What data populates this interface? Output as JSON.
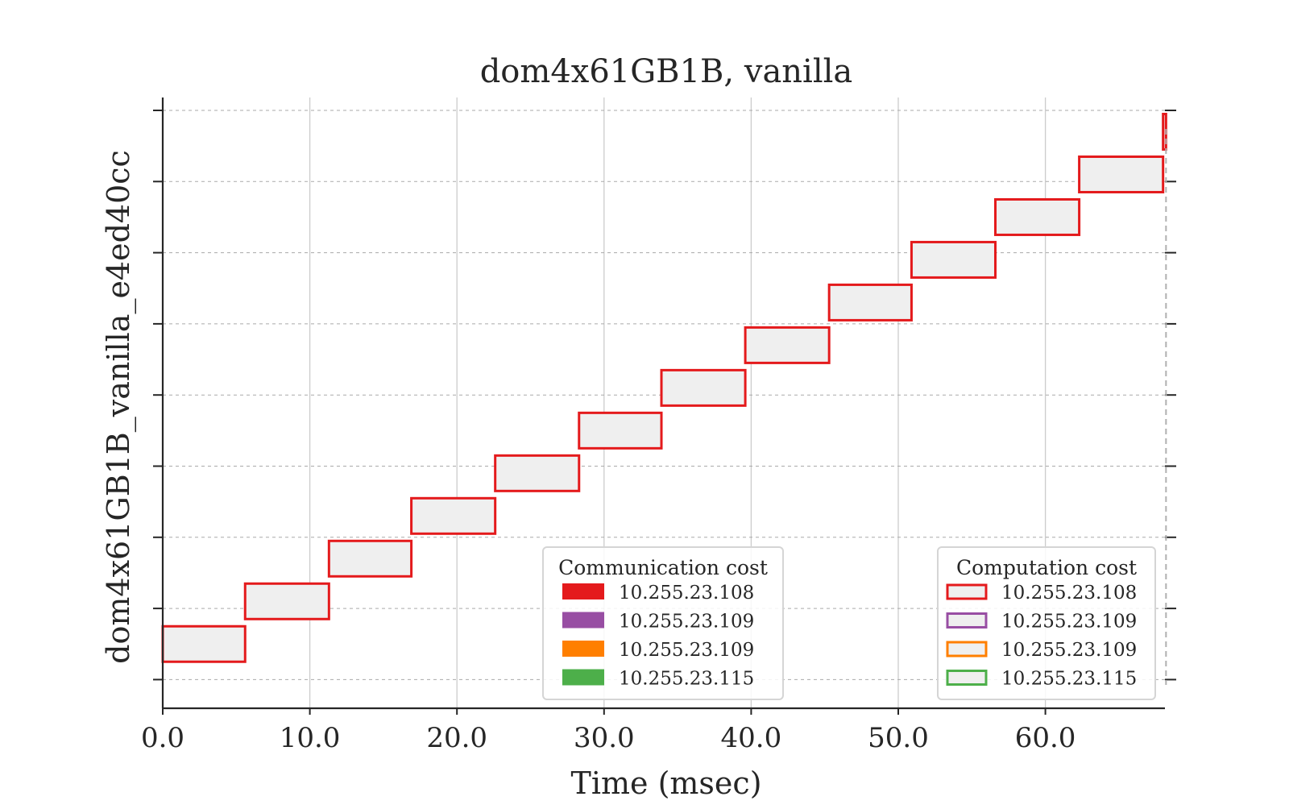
{
  "chart_data": {
    "type": "gantt",
    "title": "dom4x61GB1B, vanilla",
    "xlabel": "Time (msec)",
    "ylabel": "dom4x61GB1B_vanilla_e4ed40cc",
    "xlim": [
      0,
      68.2
    ],
    "x_ticks": [
      "0.0",
      "10.0",
      "20.0",
      "30.0",
      "40.0",
      "50.0",
      "60.0"
    ],
    "y_tick_count": 9,
    "grid": true,
    "bars": [
      {
        "start": 0.0,
        "end": 5.6,
        "level": 0.5,
        "host": "10.255.23.108"
      },
      {
        "start": 5.6,
        "end": 11.3,
        "level": 1.1,
        "host": "10.255.23.108"
      },
      {
        "start": 11.3,
        "end": 16.9,
        "level": 1.7,
        "host": "10.255.23.108"
      },
      {
        "start": 16.9,
        "end": 22.6,
        "level": 2.3,
        "host": "10.255.23.108"
      },
      {
        "start": 22.6,
        "end": 28.3,
        "level": 2.9,
        "host": "10.255.23.108"
      },
      {
        "start": 28.3,
        "end": 33.9,
        "level": 3.5,
        "host": "10.255.23.108"
      },
      {
        "start": 33.9,
        "end": 39.6,
        "level": 4.1,
        "host": "10.255.23.108"
      },
      {
        "start": 39.6,
        "end": 45.3,
        "level": 4.7,
        "host": "10.255.23.108"
      },
      {
        "start": 45.3,
        "end": 50.9,
        "level": 5.3,
        "host": "10.255.23.108"
      },
      {
        "start": 50.9,
        "end": 56.6,
        "level": 5.9,
        "host": "10.255.23.108"
      },
      {
        "start": 56.6,
        "end": 62.3,
        "level": 6.5,
        "host": "10.255.23.108"
      },
      {
        "start": 62.3,
        "end": 68.0,
        "level": 7.1,
        "host": "10.255.23.108"
      },
      {
        "start": 68.0,
        "end": 68.2,
        "level": 7.7,
        "host": "10.255.23.108"
      }
    ],
    "end_marker": 68.2,
    "legends": [
      {
        "title": "Communication cost",
        "style": "filled",
        "placement": "lower-center",
        "entries": [
          {
            "label": "10.255.23.108",
            "color": "#e41a1c"
          },
          {
            "label": "10.255.23.109",
            "color": "#984ea3"
          },
          {
            "label": "10.255.23.109",
            "color": "#ff7f00"
          },
          {
            "label": "10.255.23.115",
            "color": "#4daf4a"
          }
        ]
      },
      {
        "title": "Computation cost",
        "style": "outline",
        "placement": "lower-right",
        "entries": [
          {
            "label": "10.255.23.108",
            "color": "#e41a1c"
          },
          {
            "label": "10.255.23.109",
            "color": "#984ea3"
          },
          {
            "label": "10.255.23.109",
            "color": "#ff7f00"
          },
          {
            "label": "10.255.23.115",
            "color": "#4daf4a"
          }
        ]
      }
    ],
    "bar_fill": "#efefef",
    "bar_stroke": "#e41a1c"
  }
}
